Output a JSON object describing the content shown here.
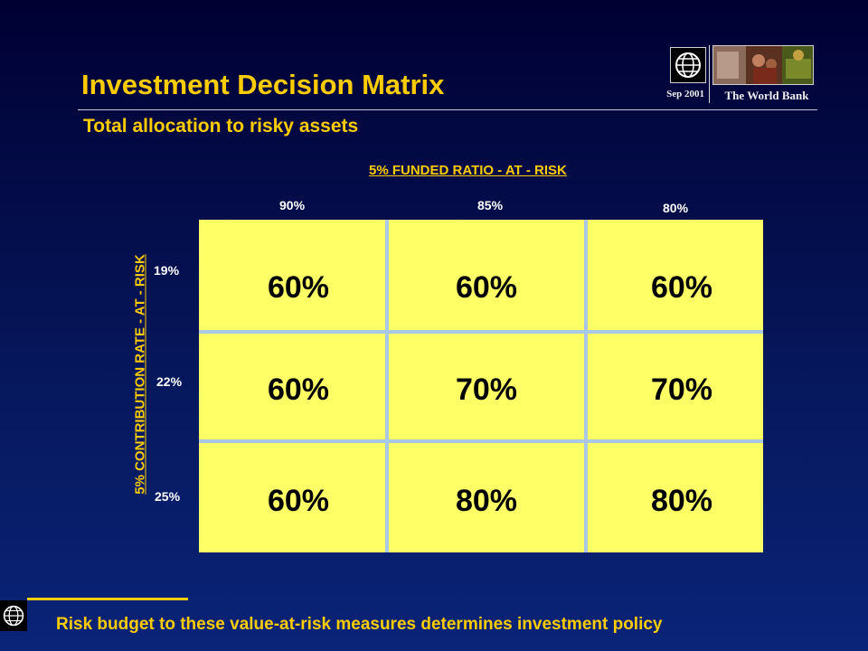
{
  "header": {
    "title": "Investment Decision Matrix",
    "subtitle": "Total allocation to risky assets"
  },
  "logo": {
    "date": "Sep 2001",
    "organization": "The World Bank",
    "globe_icon": "globe-icon"
  },
  "matrix": {
    "column_axis_title": "5% FUNDED RATIO - AT - RISK",
    "row_axis_title": "5% CONTRIBUTION RATE - AT - RISK",
    "columns": [
      "90%",
      "85%",
      "80%"
    ],
    "rows": [
      "19%",
      "22%",
      "25%"
    ],
    "cells": [
      [
        "60%",
        "60%",
        "60%"
      ],
      [
        "60%",
        "70%",
        "70%"
      ],
      [
        "60%",
        "80%",
        "80%"
      ]
    ]
  },
  "footer": {
    "text": "Risk budget to these value-at-risk measures determines investment policy"
  },
  "colors": {
    "background": "#06165a",
    "accent": "#ffcc00",
    "cell_fill": "#ffff66",
    "grid_lines": "#a8c8e6"
  }
}
